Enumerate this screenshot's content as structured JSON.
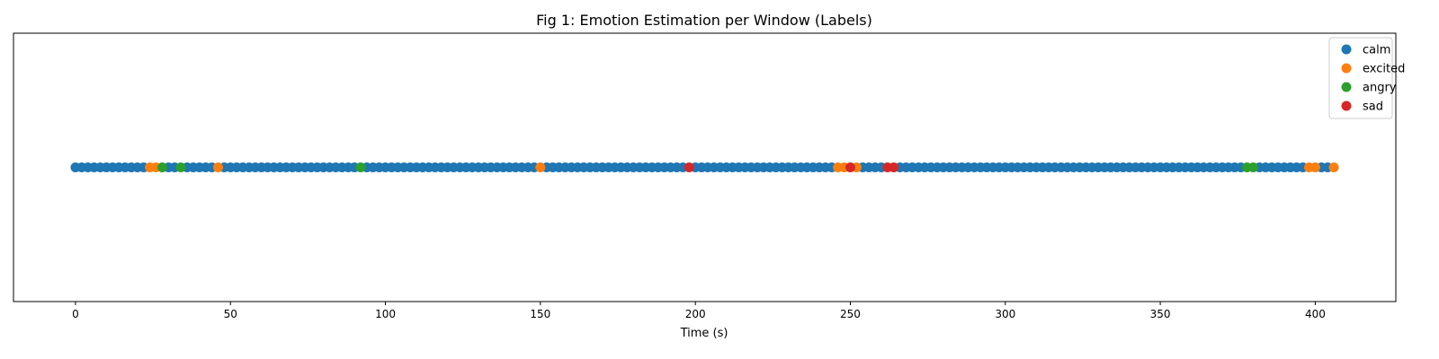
{
  "chart_data": {
    "type": "scatter",
    "title": "Fig 1: Emotion Estimation per Window (Labels)",
    "xlabel": "Time (s)",
    "ylabel": "",
    "xlim": [
      -20,
      426
    ],
    "ylim": [
      -1,
      1
    ],
    "xticks": [
      0,
      50,
      100,
      150,
      200,
      250,
      300,
      350,
      400
    ],
    "xtick_labels": [
      "0",
      "50",
      "100",
      "150",
      "200",
      "250",
      "300",
      "350",
      "400"
    ],
    "y_value": 0,
    "grid": false,
    "legend_position": "top-right",
    "series": [
      {
        "name": "calm",
        "color": "#1f77b4",
        "marker_spacing_s": 2,
        "x_range": [
          0,
          404
        ],
        "exclude": [
          24,
          26,
          28,
          34,
          46,
          92,
          150,
          198,
          246,
          248,
          250,
          252,
          262,
          264,
          378,
          380,
          398,
          400
        ]
      },
      {
        "name": "excited",
        "color": "#ff7f0e",
        "x": [
          24,
          26,
          46,
          150,
          246,
          248,
          252,
          398,
          400,
          406
        ]
      },
      {
        "name": "angry",
        "color": "#2ca02c",
        "x": [
          28,
          34,
          92,
          378,
          380
        ]
      },
      {
        "name": "sad",
        "color": "#d62728",
        "x": [
          198,
          250,
          262,
          264
        ]
      }
    ]
  }
}
